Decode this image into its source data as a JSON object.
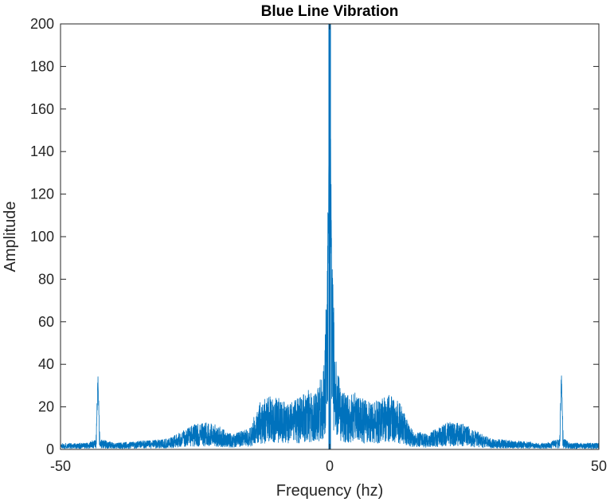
{
  "chart_data": {
    "type": "line",
    "title": "Blue Line Vibration",
    "xlabel": "Frequency (hz)",
    "ylabel": "Amplitude",
    "xlim": [
      -50,
      50
    ],
    "ylim": [
      0,
      200
    ],
    "xticks": [
      -50,
      0,
      50
    ],
    "yticks": [
      0,
      20,
      40,
      60,
      80,
      100,
      120,
      140,
      160,
      180,
      200
    ],
    "grid": false,
    "line_color": "#0072BD",
    "series": [
      {
        "x": [
          -50,
          -45,
          -43.4,
          -43.05,
          -42.7,
          -40,
          -35,
          -30,
          -27,
          -25,
          -22,
          -20,
          -18,
          -15,
          -13,
          -11,
          -10,
          -8,
          -6,
          -4,
          -3,
          -2,
          -1,
          -0.5,
          -0.2,
          0,
          0.2,
          0.5,
          1,
          2,
          3,
          4,
          6,
          8,
          10,
          11,
          13,
          15,
          18,
          20,
          22,
          25,
          27,
          30,
          35,
          40,
          42.7,
          43.05,
          43.4,
          45,
          50
        ],
        "y": [
          3,
          3,
          5,
          38,
          5,
          3,
          4,
          5,
          9,
          12,
          13,
          10,
          7,
          10,
          22,
          26,
          25,
          22,
          24,
          28,
          25,
          30,
          45,
          90,
          145,
          200,
          145,
          90,
          45,
          30,
          25,
          28,
          24,
          22,
          25,
          26,
          22,
          10,
          7,
          10,
          13,
          12,
          9,
          5,
          4,
          3,
          5,
          38,
          5,
          3,
          3
        ]
      }
    ]
  }
}
